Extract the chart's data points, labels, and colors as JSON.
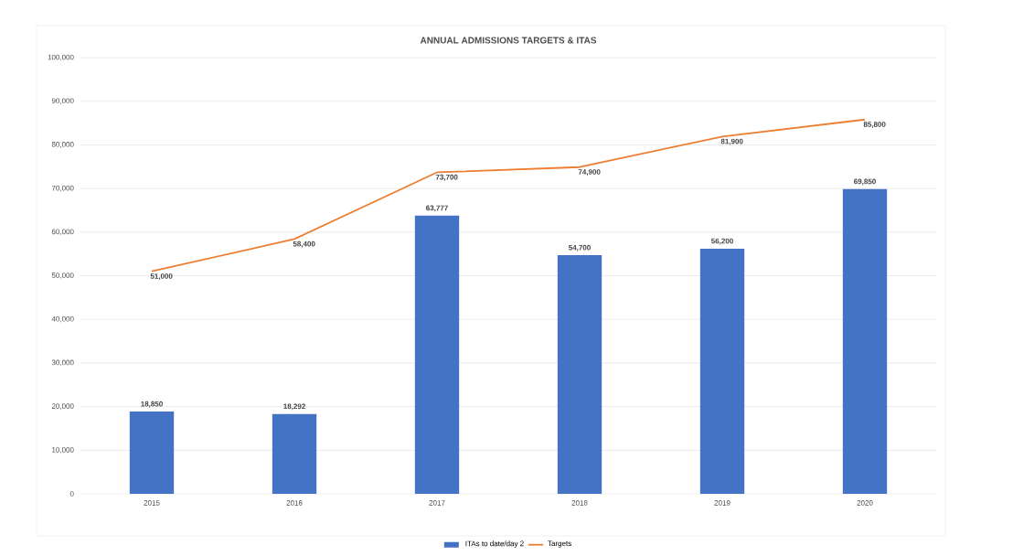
{
  "chart_data": {
    "type": "bar",
    "title": "ANNUAL ADMISSIONS TARGETS & ITAS",
    "categories": [
      "2015",
      "2016",
      "2017",
      "2018",
      "2019",
      "2020"
    ],
    "series": [
      {
        "name": "ITAs to date/day 2",
        "color": "#4472c4",
        "values": [
          18850,
          18292,
          63777,
          54700,
          56200,
          69850
        ],
        "value_labels": [
          "18,850",
          "18,292",
          "63,777",
          "54,700",
          "56,200",
          "69,850"
        ]
      },
      {
        "name": "Targets",
        "type": "line",
        "color": "#ed7d31",
        "marker": "none",
        "values": [
          51000,
          58400,
          73700,
          74900,
          81900,
          85800
        ],
        "value_labels": [
          "51,000",
          "58,400",
          "73,700",
          "74,900",
          "81,900",
          "85,800"
        ]
      }
    ],
    "ylim": [
      0,
      100000
    ],
    "yticks": [
      {
        "value": 0,
        "label": "0"
      },
      {
        "value": 10000,
        "label": "10,000"
      },
      {
        "value": 20000,
        "label": "20,000"
      },
      {
        "value": 30000,
        "label": "30,000"
      },
      {
        "value": 40000,
        "label": "40,000"
      },
      {
        "value": 50000,
        "label": "50,000"
      },
      {
        "value": 60000,
        "label": "60,000"
      },
      {
        "value": 70000,
        "label": "70,000"
      },
      {
        "value": 80000,
        "label": "80,000"
      },
      {
        "value": 90000,
        "label": "90,000"
      },
      {
        "value": 100000,
        "label": "100,000"
      }
    ],
    "grid": "y",
    "legend": "bottom"
  }
}
